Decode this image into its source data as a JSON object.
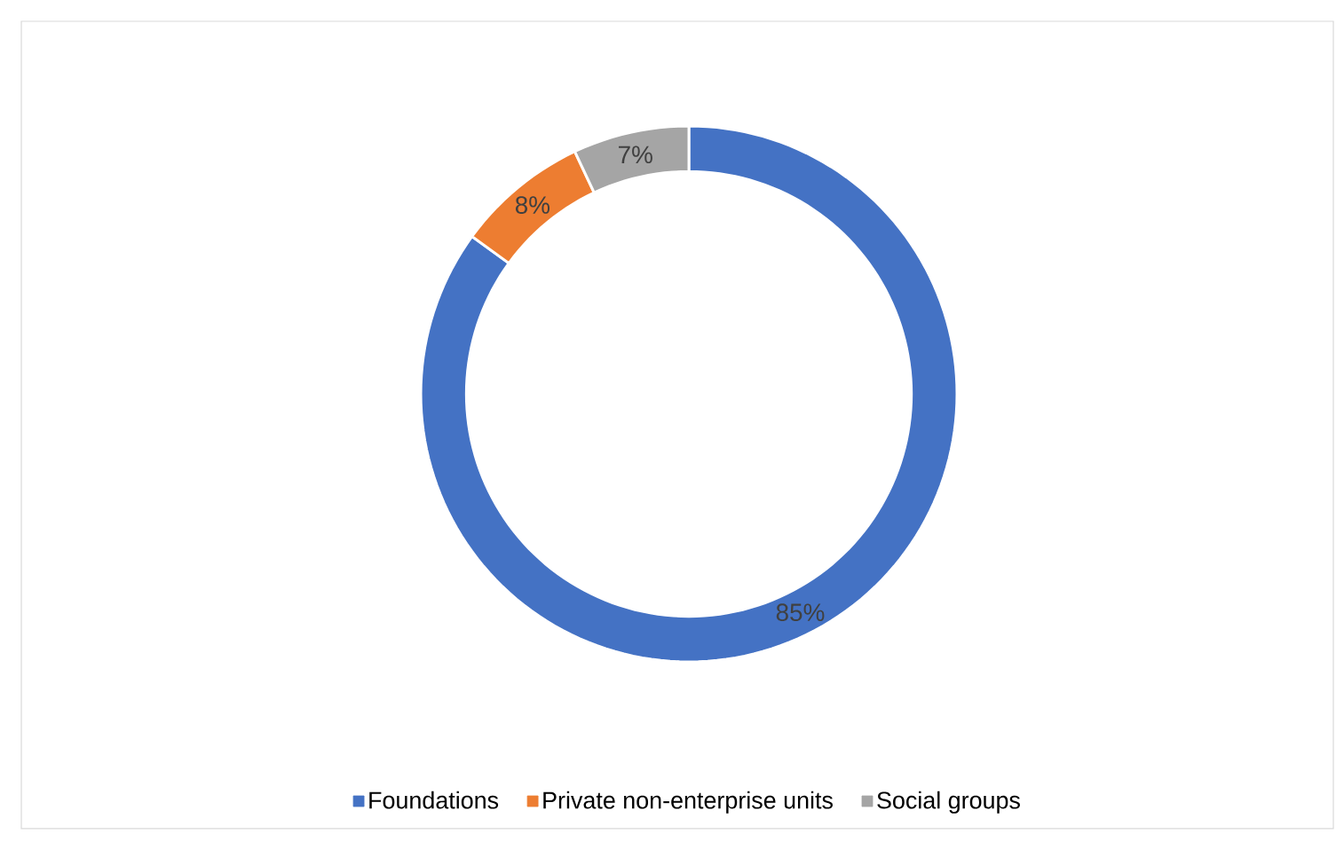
{
  "chart_data": {
    "type": "donut",
    "categories": [
      "Foundations",
      "Private non-enterprise units",
      "Social groups"
    ],
    "values": [
      85,
      8,
      7
    ],
    "colors": [
      "#4472c4",
      "#ed7d31",
      "#a5a5a5"
    ],
    "value_labels": [
      "85%",
      "8%",
      "7%"
    ],
    "legend": "bottom"
  }
}
